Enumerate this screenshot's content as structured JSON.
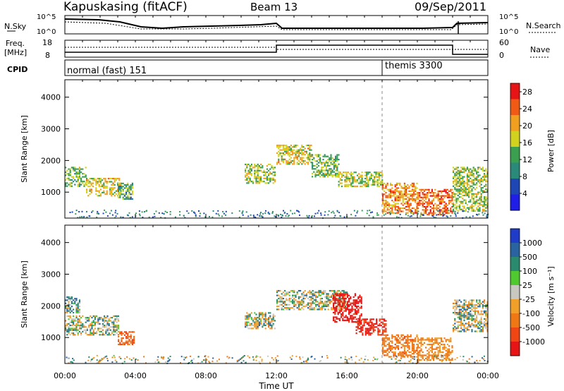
{
  "header": {
    "station": "Kapuskasing (fitACF)",
    "beam": "Beam 13",
    "date": "09/Sep/2011"
  },
  "noise_panel": {
    "left_label": "N.Sky",
    "right_label": "N.Search",
    "left_ticks": [
      "10^5",
      "10^0"
    ],
    "right_ticks": [
      "10^5",
      "10^0"
    ]
  },
  "freq_panel": {
    "left_label_1": "Freq.",
    "left_label_2": "[MHz]",
    "right_label": "Nave",
    "left_ticks": [
      "18",
      "8"
    ],
    "right_ticks": [
      "60",
      "0"
    ]
  },
  "cpid_panel": {
    "label": "CPID",
    "modes": [
      {
        "name": "normal (fast) 151",
        "start_hour": 0
      },
      {
        "name": "themis 3300",
        "start_hour": 18
      }
    ]
  },
  "colors": {
    "power_scale": [
      "#1e1ee6",
      "#1e46b4",
      "#2a8a7a",
      "#3aa050",
      "#d2d21e",
      "#f0a01e",
      "#f05a14",
      "#e61414"
    ],
    "velocity_scale": [
      "#1e3cc8",
      "#2a64a0",
      "#2a8a6e",
      "#50c830",
      "#c8c8c0",
      "#f0a028",
      "#f07814",
      "#f04614",
      "#e61414"
    ],
    "ground_scatter": "#c0c0b8"
  },
  "chart_data": [
    {
      "type": "heatmap",
      "name": "power",
      "xlabel": "",
      "ylabel": "Slant Range [km]",
      "x_ticks": [
        "00:00",
        "04:00",
        "08:00",
        "12:00",
        "16:00",
        "20:00",
        "00:00"
      ],
      "xlim": [
        0,
        24
      ],
      "y_ticks": [
        1000,
        2000,
        3000,
        4000
      ],
      "ylim": [
        180,
        4550
      ],
      "colorbar": {
        "label": "Power [dB]",
        "ticks": [
          4,
          8,
          12,
          16,
          20,
          24,
          28
        ],
        "range": [
          0,
          30
        ]
      },
      "regions": [
        {
          "t": [
            0,
            1.2
          ],
          "r": [
            1200,
            1800
          ],
          "v": 14
        },
        {
          "t": [
            1.2,
            3.2
          ],
          "r": [
            900,
            1450
          ],
          "v": 18
        },
        {
          "t": [
            3.0,
            3.8
          ],
          "r": [
            800,
            1300
          ],
          "v": 12
        },
        {
          "t": [
            10.2,
            11.9
          ],
          "r": [
            1300,
            1900
          ],
          "v": 16
        },
        {
          "t": [
            12.0,
            14.0
          ],
          "r": [
            1900,
            2500
          ],
          "v": 18
        },
        {
          "t": [
            14.0,
            15.5
          ],
          "r": [
            1500,
            2200
          ],
          "v": 14
        },
        {
          "t": [
            15.5,
            18.0
          ],
          "r": [
            1200,
            1650
          ],
          "v": 16
        },
        {
          "t": [
            18.0,
            20.0
          ],
          "r": [
            350,
            1300
          ],
          "v": 22
        },
        {
          "t": [
            20.0,
            22.0
          ],
          "r": [
            280,
            1100
          ],
          "v": 24
        },
        {
          "t": [
            22.0,
            24.0
          ],
          "r": [
            400,
            1800
          ],
          "v": 16
        }
      ]
    },
    {
      "type": "heatmap",
      "name": "velocity",
      "xlabel": "Time UT",
      "ylabel": "Slant Range [km]",
      "x_ticks": [
        "00:00",
        "04:00",
        "08:00",
        "12:00",
        "16:00",
        "20:00",
        "00:00"
      ],
      "xlim": [
        0,
        24
      ],
      "y_ticks": [
        1000,
        2000,
        3000,
        4000
      ],
      "ylim": [
        180,
        4550
      ],
      "colorbar": {
        "label": "Velocity [m s⁻¹]",
        "ticks": [
          1000,
          500,
          100,
          25,
          -25,
          -100,
          -500,
          -1000
        ]
      },
      "regions": [
        {
          "t": [
            0,
            3.0
          ],
          "r": [
            1100,
            1700
          ],
          "v": 0
        },
        {
          "t": [
            0,
            0.8
          ],
          "r": [
            1800,
            2300
          ],
          "v": 60
        },
        {
          "t": [
            3.0,
            3.9
          ],
          "r": [
            800,
            1200
          ],
          "v": -300
        },
        {
          "t": [
            10.2,
            11.9
          ],
          "r": [
            1300,
            1800
          ],
          "v": 0
        },
        {
          "t": [
            12.0,
            16.0
          ],
          "r": [
            1900,
            2500
          ],
          "v": 0
        },
        {
          "t": [
            15.2,
            16.8
          ],
          "r": [
            1500,
            2400
          ],
          "v": -600
        },
        {
          "t": [
            16.5,
            18.2
          ],
          "r": [
            1100,
            1600
          ],
          "v": -500
        },
        {
          "t": [
            18.0,
            20.0
          ],
          "r": [
            400,
            1100
          ],
          "v": -200
        },
        {
          "t": [
            20.0,
            22.0
          ],
          "r": [
            300,
            1000
          ],
          "v": -150
        },
        {
          "t": [
            22.0,
            24.0
          ],
          "r": [
            1200,
            2200
          ],
          "v": 0
        }
      ]
    }
  ]
}
